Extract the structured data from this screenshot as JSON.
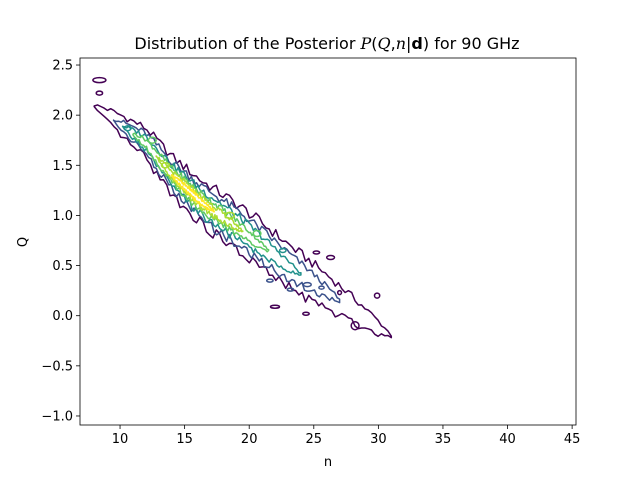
{
  "chart_data": {
    "type": "contour",
    "title_prefix": "Distribution of the Posterior ",
    "title_math_P": "P",
    "title_math_open": "(",
    "title_math_Q": "Q",
    "title_math_comma": ",",
    "title_math_n": "n",
    "title_math_bar": "|",
    "title_math_d": "d",
    "title_math_close": ")",
    "title_suffix": " for 90 GHz",
    "xlabel": "n",
    "ylabel": "Q",
    "xlim": [
      6.9,
      45.3
    ],
    "ylim": [
      -1.09,
      2.57
    ],
    "xticks": [
      10,
      15,
      20,
      25,
      30,
      35,
      40,
      45
    ],
    "xtick_labels": [
      "10",
      "15",
      "20",
      "25",
      "30",
      "35",
      "40",
      "45"
    ],
    "yticks": [
      -1.0,
      -0.5,
      0.0,
      0.5,
      1.0,
      1.5,
      2.0,
      2.5
    ],
    "ytick_labels": [
      "−1.0",
      "−0.5",
      "0.0",
      "0.5",
      "1.0",
      "1.5",
      "2.0",
      "2.5"
    ],
    "grid": false,
    "colormap": "viridis",
    "distribution": {
      "ridge": [
        [
          9.3,
          1.97
        ],
        [
          12.0,
          1.72
        ],
        [
          14.0,
          1.4
        ],
        [
          16.3,
          1.13
        ],
        [
          19.5,
          0.84
        ],
        [
          23.0,
          0.5
        ],
        [
          27.0,
          0.15
        ],
        [
          28.8,
          -0.01
        ]
      ],
      "peak": [
        15.5,
        1.25
      ]
    },
    "levels": [
      {
        "color": "#440154",
        "halfwidth": 0.23,
        "extent": [
          8.0,
          31.0
        ],
        "noise": 0.04
      },
      {
        "color": "#3b528b",
        "halfwidth": 0.17,
        "extent": [
          9.5,
          27.0
        ],
        "noise": 0.035
      },
      {
        "color": "#21918c",
        "halfwidth": 0.125,
        "extent": [
          10.2,
          24.0
        ],
        "noise": 0.03
      },
      {
        "color": "#5ec962",
        "halfwidth": 0.085,
        "extent": [
          11.0,
          21.5
        ],
        "noise": 0.025
      },
      {
        "color": "#aadc32",
        "halfwidth": 0.055,
        "extent": [
          12.8,
          19.5
        ],
        "noise": 0.02
      },
      {
        "color": "#fde725",
        "halfwidth": 0.03,
        "extent": [
          14.0,
          17.3
        ],
        "noise": 0.012
      }
    ],
    "islands": [
      {
        "x": 8.4,
        "y": 2.35,
        "rx": 0.5,
        "ry": 0.025,
        "color": "#440154"
      },
      {
        "x": 8.4,
        "y": 2.22,
        "rx": 0.25,
        "ry": 0.02,
        "color": "#440154"
      },
      {
        "x": 29.9,
        "y": 0.2,
        "rx": 0.2,
        "ry": 0.025,
        "color": "#440154"
      },
      {
        "x": 28.2,
        "y": -0.1,
        "rx": 0.3,
        "ry": 0.04,
        "color": "#440154"
      },
      {
        "x": 26.3,
        "y": 0.58,
        "rx": 0.3,
        "ry": 0.02,
        "color": "#440154"
      },
      {
        "x": 25.2,
        "y": 0.63,
        "rx": 0.25,
        "ry": 0.015,
        "color": "#440154"
      },
      {
        "x": 22.0,
        "y": 0.09,
        "rx": 0.35,
        "ry": 0.015,
        "color": "#440154"
      },
      {
        "x": 23.2,
        "y": 0.26,
        "rx": 0.25,
        "ry": 0.015,
        "color": "#3b528b"
      },
      {
        "x": 24.5,
        "y": 0.31,
        "rx": 0.3,
        "ry": 0.02,
        "color": "#3b528b"
      },
      {
        "x": 25.6,
        "y": 0.28,
        "rx": 0.2,
        "ry": 0.015,
        "color": "#3b528b"
      },
      {
        "x": 21.6,
        "y": 0.35,
        "rx": 0.25,
        "ry": 0.015,
        "color": "#3b528b"
      },
      {
        "x": 27.0,
        "y": 0.23,
        "rx": 0.15,
        "ry": 0.02,
        "color": "#440154"
      },
      {
        "x": 24.4,
        "y": 0.02,
        "rx": 0.25,
        "ry": 0.015,
        "color": "#440154"
      },
      {
        "x": 20.6,
        "y": 0.82,
        "rx": 0.3,
        "ry": 0.03,
        "color": "#5ec962"
      },
      {
        "x": 18.5,
        "y": 1.0,
        "rx": 0.35,
        "ry": 0.03,
        "color": "#aadc32"
      },
      {
        "x": 12.5,
        "y": 1.75,
        "rx": 0.3,
        "ry": 0.03,
        "color": "#5ec962"
      },
      {
        "x": 10.6,
        "y": 1.87,
        "rx": 0.25,
        "ry": 0.025,
        "color": "#21918c"
      },
      {
        "x": 22.6,
        "y": 0.65,
        "rx": 0.25,
        "ry": 0.02,
        "color": "#21918c"
      },
      {
        "x": 13.5,
        "y": 1.5,
        "rx": 0.3,
        "ry": 0.025,
        "color": "#aadc32"
      }
    ]
  }
}
